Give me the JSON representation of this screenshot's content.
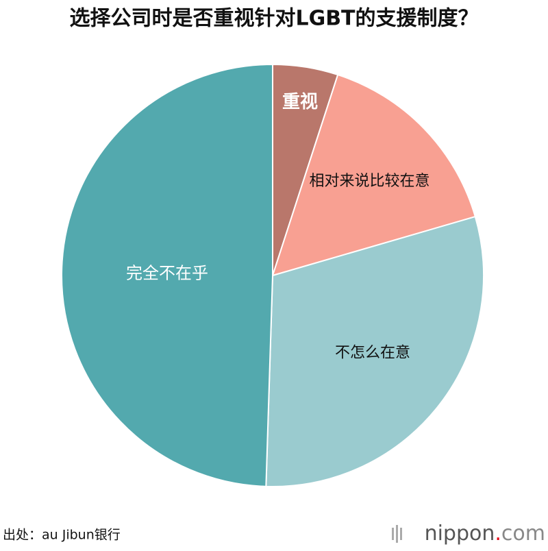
{
  "chart_data": {
    "type": "pie",
    "title": "选择公司时是否重视针对LGBT的支援制度？",
    "categories": [
      "重视",
      "相对来说比较在意",
      "不怎么在意",
      "完全不在乎"
    ],
    "values": [
      5,
      15.5,
      30,
      49.5
    ],
    "colors": [
      "#b9776b",
      "#f8a092",
      "#9acbcf",
      "#53a9ae"
    ],
    "source": "出处：au Jibun银行",
    "logo": [
      "nippon",
      ".",
      "com"
    ]
  }
}
